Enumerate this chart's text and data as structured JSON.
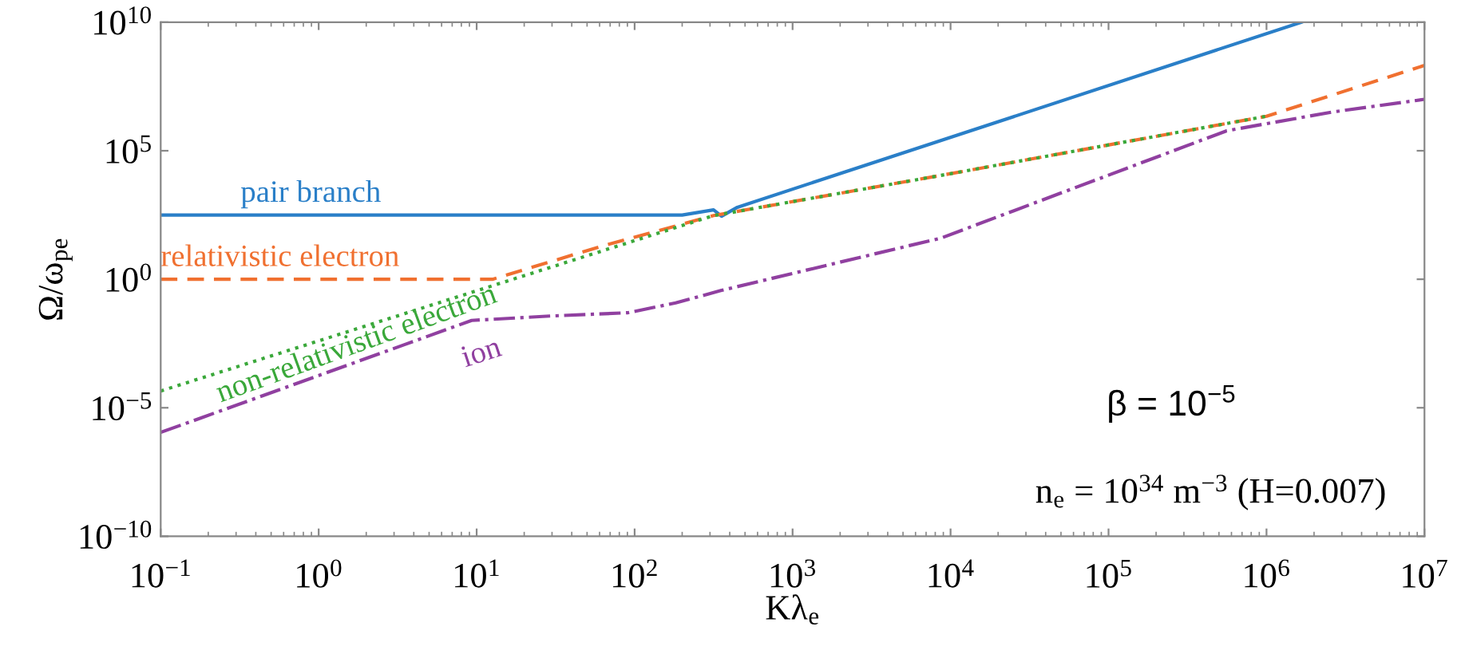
{
  "chart_data": {
    "type": "line",
    "xlabel": "Kλ$_{e}$",
    "ylabel": "Ω/ω$_{pe}$",
    "log": "xy",
    "grid": false,
    "legend": false,
    "xlim": [
      0.1,
      10000000.0
    ],
    "ylim": [
      1e-10,
      10000000000.0
    ],
    "xticks": [
      {
        "value": 0.1,
        "label": "10$^{−1}$"
      },
      {
        "value": 1,
        "label": "10$^{0}$"
      },
      {
        "value": 10,
        "label": "10$^{1}$"
      },
      {
        "value": 100,
        "label": "10$^{2}$"
      },
      {
        "value": 1000,
        "label": "10$^{3}$"
      },
      {
        "value": 10000,
        "label": "10$^{4}$"
      },
      {
        "value": 100000,
        "label": "10$^{5}$"
      },
      {
        "value": 1000000,
        "label": "10$^{6}$"
      },
      {
        "value": 10000000,
        "label": "10$^{7}$"
      }
    ],
    "yticks": [
      {
        "value": 1e-10,
        "label": "10$^{−10}$"
      },
      {
        "value": 1e-05,
        "label": "10$^{−5}$"
      },
      {
        "value": 1,
        "label": "10$^{0}$"
      },
      {
        "value": 100000.0,
        "label": "10$^{5}$"
      },
      {
        "value": 10000000000.0,
        "label": "10$^{10}$"
      }
    ],
    "series": [
      {
        "name": "pair branch",
        "color": "#2a7fc8",
        "line_style": "solid",
        "x": [
          0.1,
          200,
          316,
          355,
          447,
          1660000.0
        ],
        "values": [
          316,
          316,
          500,
          282,
          630,
          10000000000.0
        ]
      },
      {
        "name": "relativistic electron",
        "color": "#f07030",
        "line_style": "dashed",
        "x": [
          0.1,
          12.6,
          63,
          316,
          8700,
          1000000.0,
          10000000.0
        ],
        "values": [
          1,
          1,
          20,
          300,
          11000,
          2200000.0,
          210000000.0
        ]
      },
      {
        "name": "non-relativistic electron",
        "color": "#3aa83a",
        "line_style": "dotted",
        "x": [
          0.1,
          12.6,
          316,
          8700,
          1000000.0
        ],
        "values": [
          4.5e-05,
          0.56,
          300,
          11000,
          2200000.0
        ]
      },
      {
        "name": "ion",
        "color": "#9040a0",
        "line_style": "dashdot",
        "x": [
          0.1,
          0.95,
          9.3,
          29,
          91,
          182,
          355,
          8700,
          560000.0,
          2600000.0,
          10000000.0
        ],
        "values": [
          1.1e-06,
          0.00016,
          0.025,
          0.037,
          0.05,
          0.12,
          0.37,
          40,
          600000.0,
          3200000.0,
          10000000.0
        ]
      }
    ],
    "annotations": [
      "β = 10$^{−5}$",
      "n$_{e}$ = 10$^{34}$ m$^{−3}$ (H=0.007)"
    ]
  }
}
